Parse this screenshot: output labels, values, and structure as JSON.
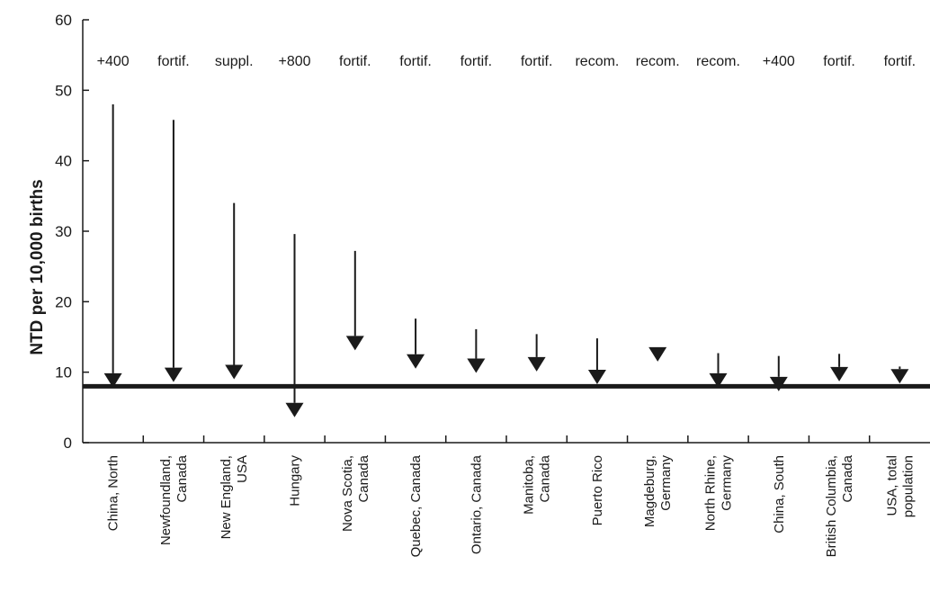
{
  "chart_data": {
    "type": "arrow-change",
    "title": "",
    "xlabel": "",
    "ylabel": "NTD per 10,000 births",
    "ylim": [
      0,
      60
    ],
    "yticks": [
      0,
      10,
      20,
      30,
      40,
      50,
      60
    ],
    "reference_line": 8,
    "categories": [
      [
        "China, North"
      ],
      [
        "Newfoundland,",
        "Canada"
      ],
      [
        "New England,",
        "USA"
      ],
      [
        "Hungary"
      ],
      [
        "Nova Scotia,",
        "Canada"
      ],
      [
        "Quebec, Canada"
      ],
      [
        "Ontario, Canada"
      ],
      [
        "Manitoba,",
        "Canada"
      ],
      [
        "Puerto Rico"
      ],
      [
        "Magdeburg,",
        "Germany"
      ],
      [
        "North Rhine,",
        "Germany"
      ],
      [
        "China, South"
      ],
      [
        "British Columbia,",
        "Canada"
      ],
      [
        "USA, total",
        "population"
      ]
    ],
    "interventions": [
      "+400",
      "fortif.",
      "suppl.",
      "+800",
      "fortif.",
      "fortif.",
      "fortif.",
      "fortif.",
      "recom.",
      "recom.",
      "recom.",
      "+400",
      "fortif.",
      "fortif."
    ],
    "before": [
      48,
      45.8,
      34,
      29.6,
      27.2,
      17.6,
      16.1,
      15.4,
      14.8,
      12.8,
      12.7,
      12.3,
      12.6,
      10.8
    ],
    "after": [
      7.8,
      8.6,
      9.0,
      3.6,
      13.1,
      10.5,
      9.9,
      10.1,
      8.3,
      11.5,
      7.8,
      7.3,
      8.7,
      8.4
    ]
  }
}
